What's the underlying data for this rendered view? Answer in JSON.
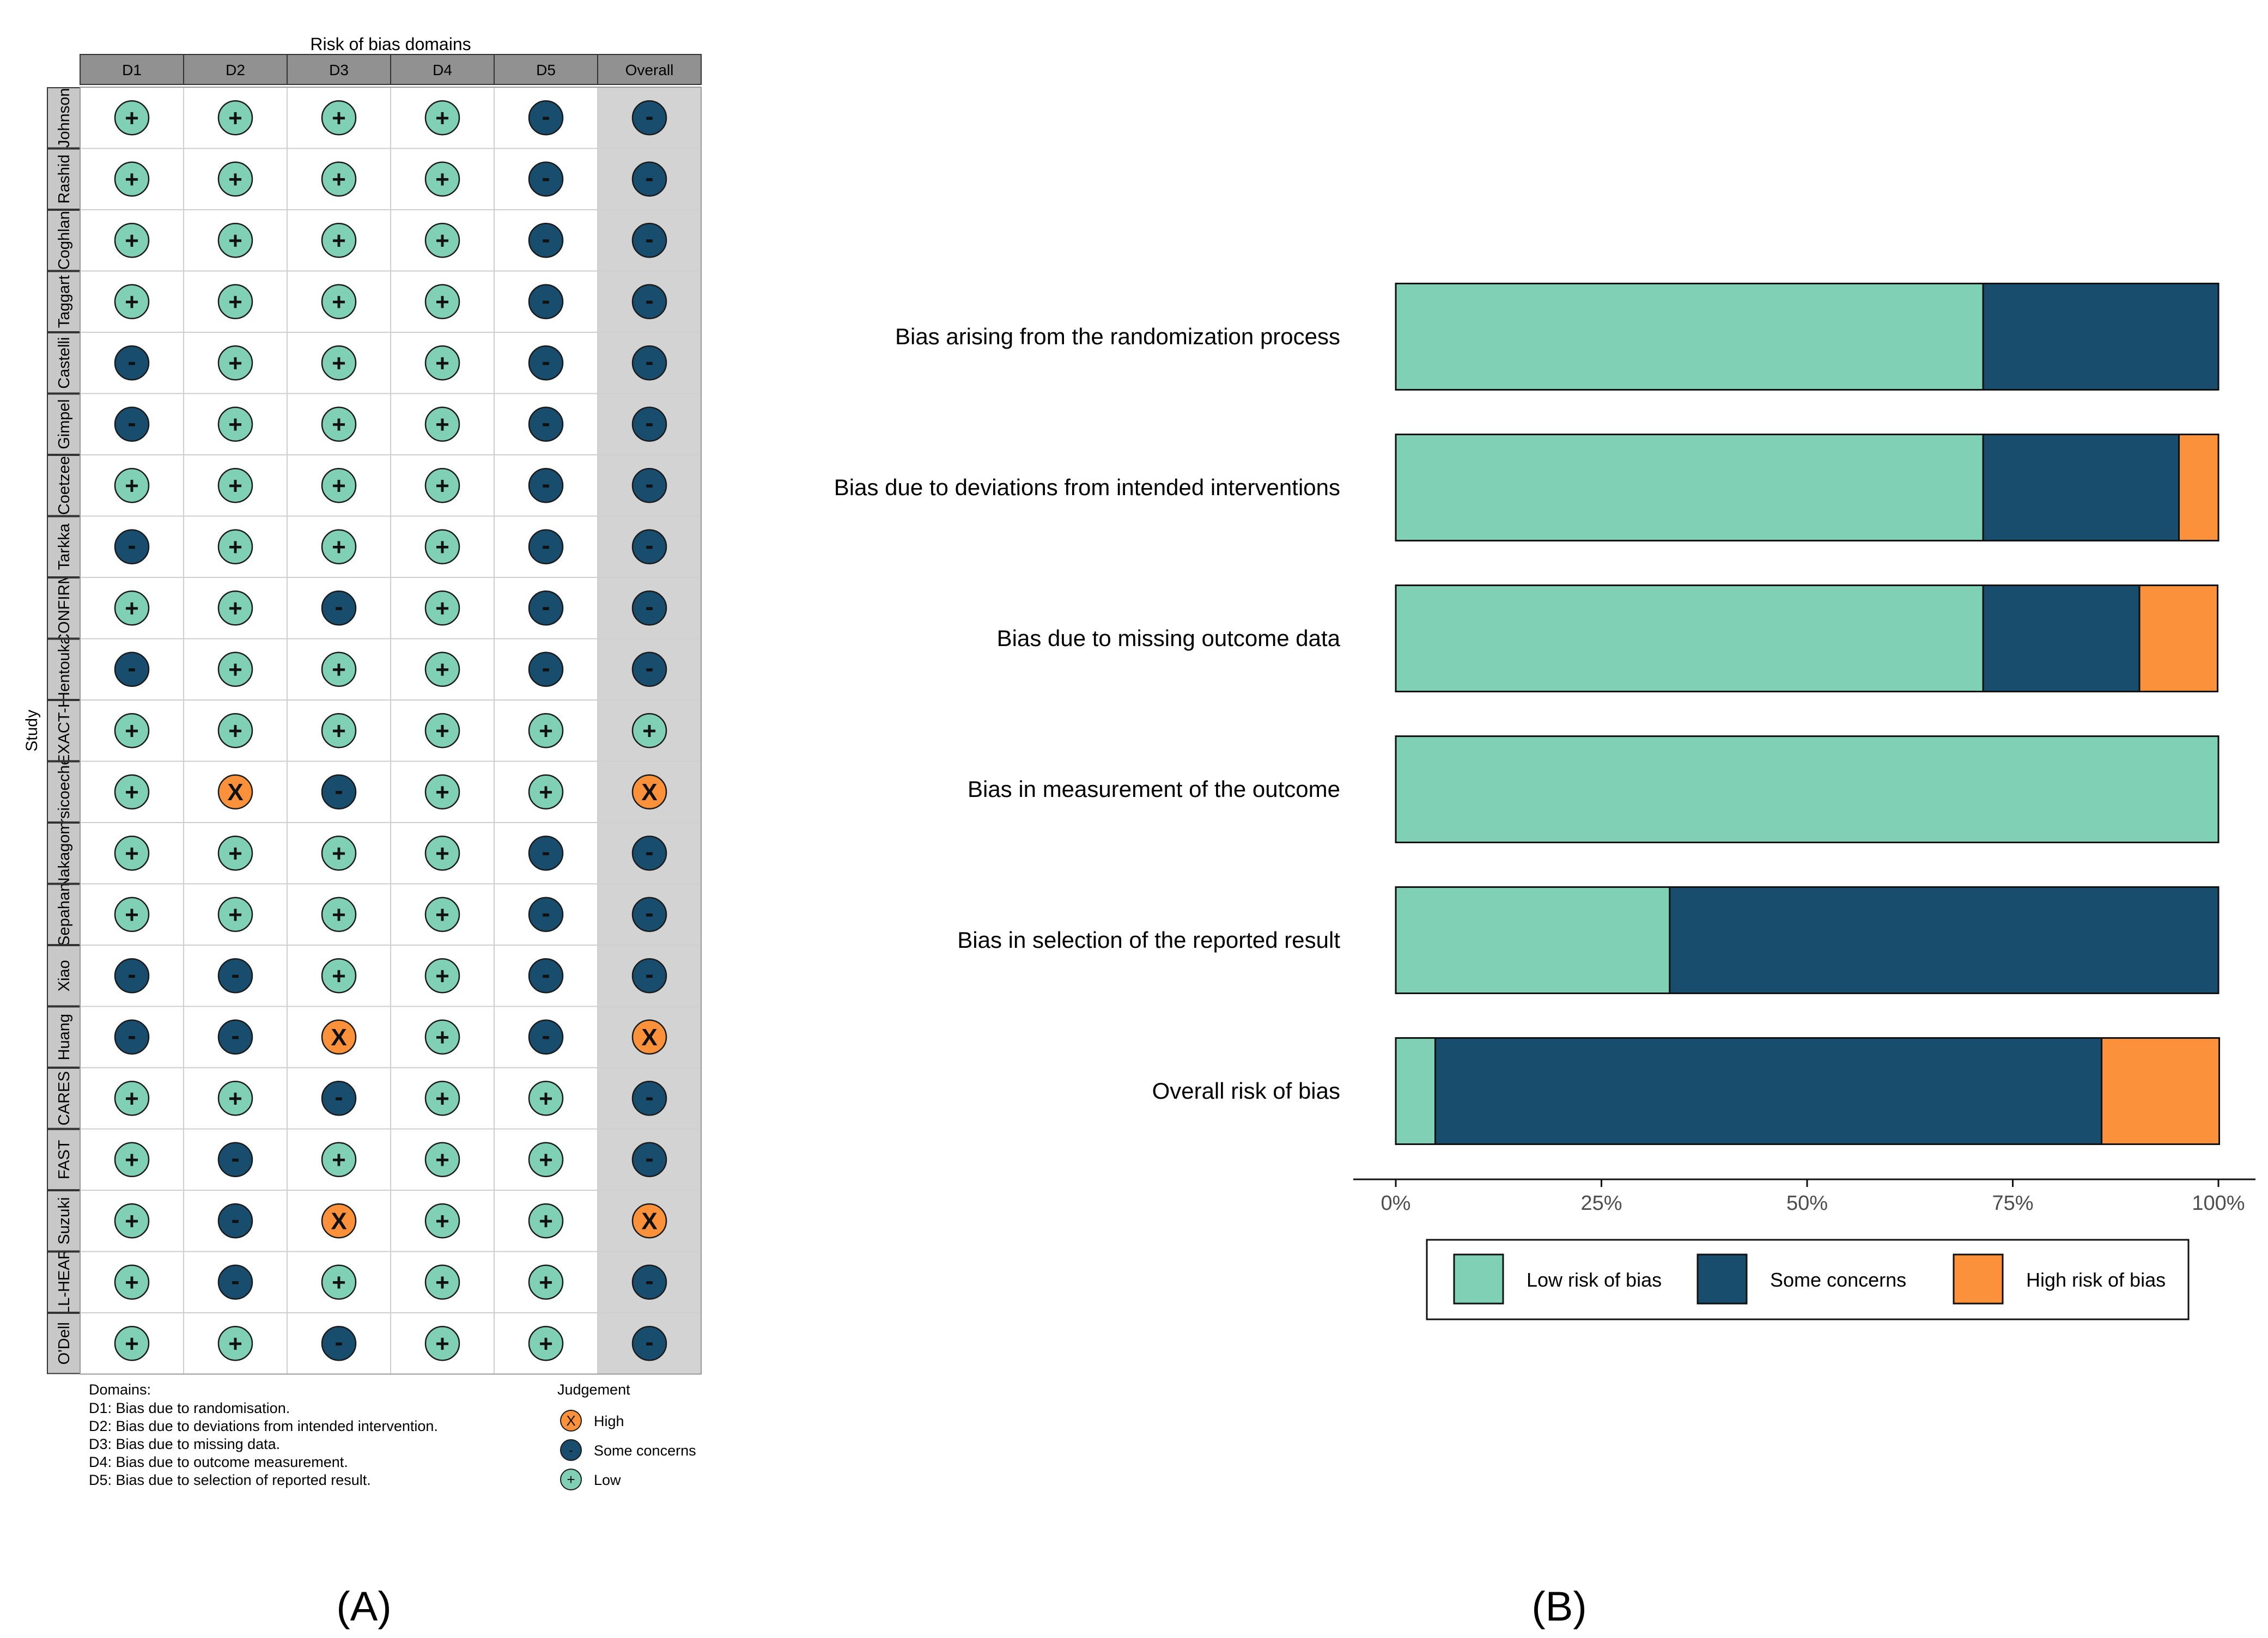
{
  "colors": {
    "low": "#7fd0b4",
    "some": "#184d6e",
    "high": "#fb913a",
    "header_fill": "#919191",
    "study_fill": "#c8c8c8",
    "overall_fill": "#d3d3d3",
    "grid": "#cfcfcf",
    "border": "#333333",
    "text": "#000000",
    "axis_text": "#4d4d4d"
  },
  "panel_a": {
    "label": "(A)",
    "header_title": "Risk of bias domains",
    "domains": [
      "D1",
      "D2",
      "D3",
      "D4",
      "D5",
      "Overall"
    ],
    "y_title": "Study",
    "studies": [
      {
        "name": "Johnson",
        "judgements": [
          "low",
          "low",
          "low",
          "low",
          "some",
          "some"
        ]
      },
      {
        "name": "Rashid",
        "judgements": [
          "low",
          "low",
          "low",
          "low",
          "some",
          "some"
        ]
      },
      {
        "name": "Coghlan",
        "judgements": [
          "low",
          "low",
          "low",
          "low",
          "some",
          "some"
        ]
      },
      {
        "name": "Taggart",
        "judgements": [
          "low",
          "low",
          "low",
          "low",
          "some",
          "some"
        ]
      },
      {
        "name": "Castelli",
        "judgements": [
          "some",
          "low",
          "low",
          "low",
          "some",
          "some"
        ]
      },
      {
        "name": "Gimpel",
        "judgements": [
          "some",
          "low",
          "low",
          "low",
          "some",
          "some"
        ]
      },
      {
        "name": "Coetzee",
        "judgements": [
          "low",
          "low",
          "low",
          "low",
          "some",
          "some"
        ]
      },
      {
        "name": "Tarkka",
        "judgements": [
          "some",
          "low",
          "low",
          "low",
          "some",
          "some"
        ]
      },
      {
        "name": "CONFIRM",
        "judgements": [
          "low",
          "low",
          "some",
          "low",
          "some",
          "some"
        ]
      },
      {
        "name": "Hentouka",
        "judgements": [
          "some",
          "low",
          "low",
          "low",
          "some",
          "some"
        ]
      },
      {
        "name": "EXACT-H",
        "judgements": [
          "low",
          "low",
          "low",
          "low",
          "low",
          "low"
        ]
      },
      {
        "name": "Orsicoechea",
        "judgements": [
          "low",
          "high",
          "some",
          "low",
          "low",
          "high"
        ]
      },
      {
        "name": "Nakagomi",
        "judgements": [
          "low",
          "low",
          "low",
          "low",
          "some",
          "some"
        ]
      },
      {
        "name": "Sepahan",
        "judgements": [
          "low",
          "low",
          "low",
          "low",
          "some",
          "some"
        ]
      },
      {
        "name": "Xiao",
        "judgements": [
          "some",
          "some",
          "low",
          "low",
          "some",
          "some"
        ]
      },
      {
        "name": "Huang",
        "judgements": [
          "some",
          "some",
          "high",
          "low",
          "some",
          "high"
        ]
      },
      {
        "name": "CARES",
        "judgements": [
          "low",
          "low",
          "some",
          "low",
          "low",
          "some"
        ]
      },
      {
        "name": "FAST",
        "judgements": [
          "low",
          "some",
          "low",
          "low",
          "low",
          "some"
        ]
      },
      {
        "name": "Suzuki",
        "judgements": [
          "low",
          "some",
          "high",
          "low",
          "low",
          "high"
        ]
      },
      {
        "name": "ALL-HEART",
        "judgements": [
          "low",
          "some",
          "low",
          "low",
          "low",
          "some"
        ]
      },
      {
        "name": "O'Dell",
        "judgements": [
          "low",
          "low",
          "some",
          "low",
          "low",
          "some"
        ]
      }
    ],
    "symbols": {
      "low": "+",
      "some": "-",
      "high": "X"
    },
    "domains_legend": {
      "title": "Domains:",
      "lines": [
        "D1: Bias due to randomisation.",
        "D2: Bias due to deviations from intended intervention.",
        "D3: Bias due to missing data.",
        "D4: Bias due to outcome measurement.",
        "D5: Bias due to selection of reported result."
      ]
    },
    "judgement_legend": {
      "title": "Judgement",
      "items": [
        {
          "key": "high",
          "label": "High"
        },
        {
          "key": "some",
          "label": "Some concerns"
        },
        {
          "key": "low",
          "label": "Low"
        }
      ]
    }
  },
  "chart_data": {
    "type": "bar",
    "orientation": "horizontal",
    "stacked": true,
    "title": "",
    "xlabel": "",
    "ylabel": "",
    "xlim": [
      0,
      100
    ],
    "x_ticks": [
      "0%",
      "25%",
      "50%",
      "75%",
      "100%"
    ],
    "categories": [
      "Bias arising from the randomization process",
      "Bias due to deviations from intended interventions",
      "Bias due to missing outcome data",
      "Bias in measurement of the outcome",
      "Bias in selection of the reported result",
      "Overall risk of bias"
    ],
    "series": [
      {
        "name": "Low risk of bias",
        "key": "low",
        "values": [
          71.4,
          71.4,
          71.4,
          100,
          33.3,
          4.8
        ]
      },
      {
        "name": "Some concerns",
        "key": "some",
        "values": [
          28.6,
          23.8,
          19.0,
          0,
          66.7,
          81.0
        ]
      },
      {
        "name": "High risk of bias",
        "key": "high",
        "values": [
          0,
          4.8,
          9.5,
          0,
          0,
          14.3
        ]
      }
    ],
    "legend_position": "bottom",
    "panel_label": "(B)"
  }
}
